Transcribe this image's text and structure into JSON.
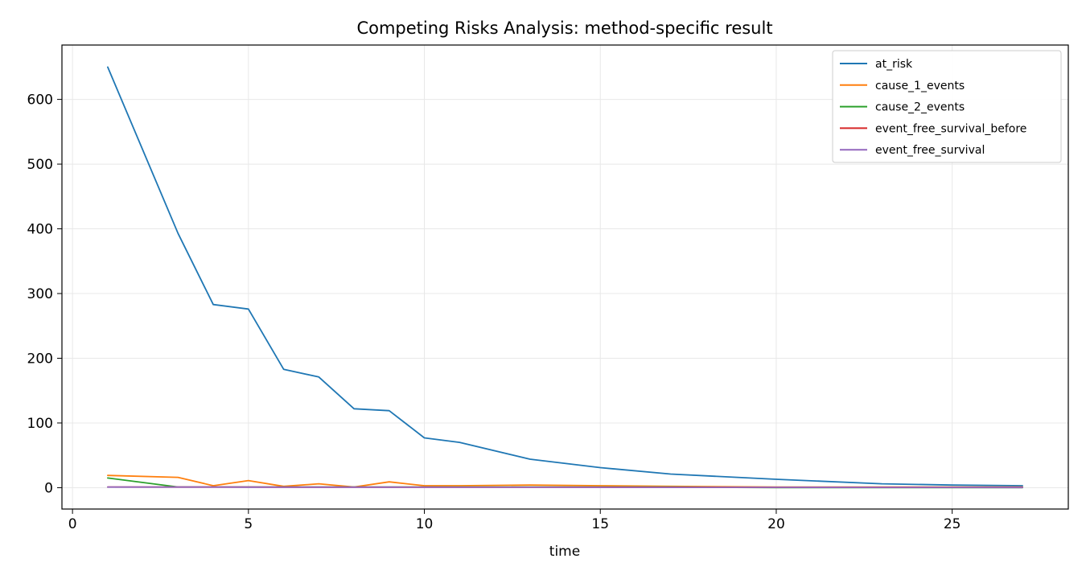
{
  "chart_data": {
    "type": "line",
    "title": "Competing Risks Analysis: method-specific result",
    "xlabel": "time",
    "ylabel": "",
    "xlim": [
      -0.3,
      28.3
    ],
    "ylim": [
      -33,
      684
    ],
    "x_ticks": [
      0,
      5,
      10,
      15,
      20,
      25
    ],
    "y_ticks": [
      0,
      100,
      200,
      300,
      400,
      500,
      600
    ],
    "grid": true,
    "legend_position": "top-right",
    "series": [
      {
        "name": "at_risk",
        "color": "#1f77b4",
        "points": [
          [
            1,
            650
          ],
          [
            3,
            393
          ],
          [
            4,
            283
          ],
          [
            5,
            276
          ],
          [
            6,
            183
          ],
          [
            7,
            171
          ],
          [
            8,
            122
          ],
          [
            9,
            119
          ],
          [
            10,
            77
          ],
          [
            11,
            70
          ],
          [
            13,
            44
          ],
          [
            15,
            31
          ],
          [
            17,
            21
          ],
          [
            20,
            13
          ],
          [
            23,
            6
          ],
          [
            25,
            4
          ],
          [
            27,
            3
          ]
        ]
      },
      {
        "name": "cause_1_events",
        "color": "#ff7f0e",
        "points": [
          [
            1,
            19
          ],
          [
            3,
            16
          ],
          [
            4,
            3
          ],
          [
            5,
            11
          ],
          [
            6,
            2
          ],
          [
            7,
            6
          ],
          [
            8,
            1
          ],
          [
            9,
            9
          ],
          [
            10,
            3
          ],
          [
            11,
            3
          ],
          [
            13,
            4
          ],
          [
            15,
            3
          ],
          [
            17,
            2
          ],
          [
            20,
            1
          ],
          [
            23,
            1
          ],
          [
            25,
            1
          ],
          [
            27,
            1
          ]
        ]
      },
      {
        "name": "cause_2_events",
        "color": "#2ca02c",
        "points": [
          [
            1,
            15
          ],
          [
            3,
            1
          ],
          [
            4,
            1
          ],
          [
            5,
            1
          ],
          [
            6,
            1
          ],
          [
            7,
            1
          ],
          [
            8,
            1
          ],
          [
            9,
            1
          ],
          [
            10,
            1
          ],
          [
            11,
            1
          ],
          [
            13,
            1
          ],
          [
            15,
            1
          ],
          [
            17,
            1
          ],
          [
            20,
            0
          ],
          [
            23,
            0
          ],
          [
            25,
            0
          ],
          [
            27,
            0
          ]
        ]
      },
      {
        "name": "event_free_survival_before",
        "color": "#d62728",
        "points": [
          [
            1,
            1
          ],
          [
            3,
            0.95
          ],
          [
            4,
            0.9
          ],
          [
            5,
            0.88
          ],
          [
            6,
            0.85
          ],
          [
            7,
            0.83
          ],
          [
            8,
            0.8
          ],
          [
            9,
            0.78
          ],
          [
            10,
            0.75
          ],
          [
            11,
            0.72
          ],
          [
            13,
            0.68
          ],
          [
            15,
            0.65
          ],
          [
            17,
            0.6
          ],
          [
            20,
            0.55
          ],
          [
            23,
            0.5
          ],
          [
            25,
            0.45
          ],
          [
            27,
            0.4
          ]
        ]
      },
      {
        "name": "event_free_survival",
        "color": "#9467bd",
        "points": [
          [
            1,
            0.95
          ],
          [
            3,
            0.9
          ],
          [
            4,
            0.88
          ],
          [
            5,
            0.85
          ],
          [
            6,
            0.83
          ],
          [
            7,
            0.8
          ],
          [
            8,
            0.78
          ],
          [
            9,
            0.75
          ],
          [
            10,
            0.72
          ],
          [
            11,
            0.68
          ],
          [
            13,
            0.65
          ],
          [
            15,
            0.6
          ],
          [
            17,
            0.55
          ],
          [
            20,
            0.5
          ],
          [
            23,
            0.45
          ],
          [
            25,
            0.4
          ],
          [
            27,
            0.35
          ]
        ]
      }
    ]
  }
}
